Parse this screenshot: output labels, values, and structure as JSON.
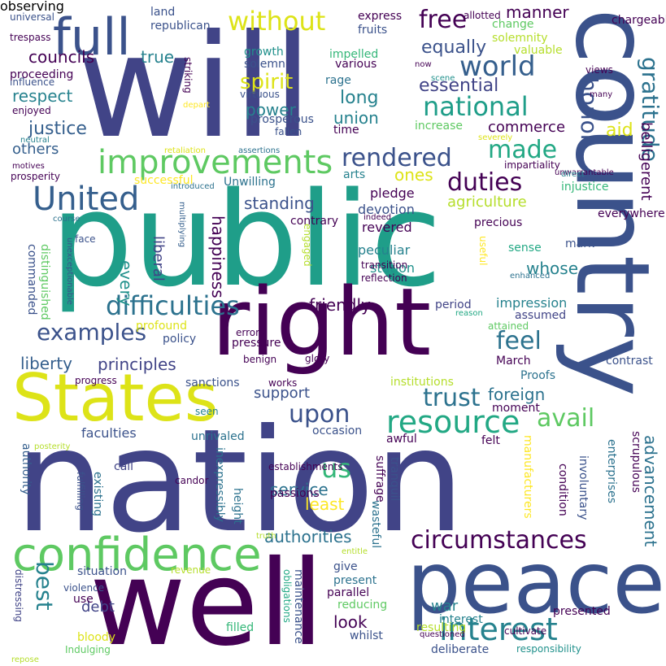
{
  "words": [
    {
      "text": "public",
      "color": "#1f9e89"
    },
    {
      "text": "nation",
      "color": "#414487"
    },
    {
      "text": "will",
      "color": "#414487"
    },
    {
      "text": "well",
      "color": "#440154"
    },
    {
      "text": "country",
      "color": "#3b528b"
    },
    {
      "text": "right",
      "color": "#440154"
    },
    {
      "text": "peace",
      "color": "#3b528b"
    },
    {
      "text": "States",
      "color": "#dde318"
    },
    {
      "text": "full",
      "color": "#3b528b"
    },
    {
      "text": "confidence",
      "color": "#5ec962"
    },
    {
      "text": "improvements",
      "color": "#5ec962"
    },
    {
      "text": "United",
      "color": "#355f8d"
    },
    {
      "text": "interest",
      "color": "#26828e"
    },
    {
      "text": "circumstances",
      "color": "#440154"
    },
    {
      "text": "resource",
      "color": "#22a884"
    },
    {
      "text": "difficulties",
      "color": "#2c728e"
    },
    {
      "text": "national",
      "color": "#1f9e89"
    },
    {
      "text": "world",
      "color": "#355f8d"
    },
    {
      "text": "rendered",
      "color": "#3b528b"
    },
    {
      "text": "duties",
      "color": "#440154"
    },
    {
      "text": "made",
      "color": "#22a884"
    },
    {
      "text": "without",
      "color": "#dde318"
    },
    {
      "text": "gratitude",
      "color": "#2c728e"
    },
    {
      "text": "honor",
      "color": "#3b528b"
    },
    {
      "text": "examples",
      "color": "#3b528b"
    },
    {
      "text": "trust",
      "color": "#2c728e"
    },
    {
      "text": "upon",
      "color": "#3b528b"
    },
    {
      "text": "best",
      "color": "#26828e"
    },
    {
      "text": "us",
      "color": "#35b779"
    },
    {
      "text": "free",
      "color": "#440154"
    },
    {
      "text": "feel",
      "color": "#2c728e"
    },
    {
      "text": "avail",
      "color": "#5ec962"
    },
    {
      "text": "spirit",
      "color": "#dde318"
    },
    {
      "text": "councils",
      "color": "#440154"
    },
    {
      "text": "justice",
      "color": "#355f8d"
    },
    {
      "text": "advancement",
      "color": "#2c728e"
    },
    {
      "text": "authorities",
      "color": "#2c728e"
    },
    {
      "text": "debt",
      "color": "#414487"
    },
    {
      "text": "principles",
      "color": "#414487"
    },
    {
      "text": "liberty",
      "color": "#355f8d"
    },
    {
      "text": "foreign",
      "color": "#2c728e"
    },
    {
      "text": "standing",
      "color": "#3b528b"
    },
    {
      "text": "happiness",
      "color": "#440154"
    },
    {
      "text": "liberal",
      "color": "#414487"
    },
    {
      "text": "every",
      "color": "#21918c"
    },
    {
      "text": "power",
      "color": "#26828e"
    },
    {
      "text": "union",
      "color": "#26828e"
    },
    {
      "text": "long",
      "color": "#26828e"
    },
    {
      "text": "essential",
      "color": "#414487"
    },
    {
      "text": "equally",
      "color": "#3b528b"
    },
    {
      "text": "manner",
      "color": "#440154"
    },
    {
      "text": "agriculture",
      "color": "#b5de2b"
    },
    {
      "text": "commerce",
      "color": "#440154"
    },
    {
      "text": "belligerent",
      "color": "#440154"
    },
    {
      "text": "aid",
      "color": "#dde318"
    },
    {
      "text": "whose",
      "color": "#26828e"
    },
    {
      "text": "respect",
      "color": "#26828e"
    },
    {
      "text": "others",
      "color": "#355f8d"
    },
    {
      "text": "friendly",
      "color": "#440154"
    },
    {
      "text": "war",
      "color": "#26828e"
    },
    {
      "text": "look",
      "color": "#440154"
    },
    {
      "text": "support",
      "color": "#3b528b"
    },
    {
      "text": "service",
      "color": "#2c728e"
    },
    {
      "text": "least",
      "color": "#fde725"
    },
    {
      "text": "true",
      "color": "#26828e"
    },
    {
      "text": "ones",
      "color": "#dde318"
    },
    {
      "text": "pledge",
      "color": "#440154"
    },
    {
      "text": "devotion",
      "color": "#3b528b"
    },
    {
      "text": "revered",
      "color": "#440154"
    },
    {
      "text": "peculiar",
      "color": "#26828e"
    },
    {
      "text": "station",
      "color": "#21918c"
    },
    {
      "text": "impression",
      "color": "#26828e"
    },
    {
      "text": "assumed",
      "color": "#414487"
    },
    {
      "text": "period",
      "color": "#414487"
    },
    {
      "text": "mark",
      "color": "#3b528b"
    },
    {
      "text": "sense",
      "color": "#22a884"
    },
    {
      "text": "interest",
      "color": "#26828e"
    },
    {
      "text": "presented",
      "color": "#440154"
    },
    {
      "text": "resulting",
      "color": "#b5de2b"
    },
    {
      "text": "deliberate",
      "color": "#3b528b"
    },
    {
      "text": "responsibility",
      "color": "#21918c"
    },
    {
      "text": "whilst",
      "color": "#3b528b"
    },
    {
      "text": "questioned",
      "color": "#440154"
    },
    {
      "text": "cultivate",
      "color": "#440154"
    },
    {
      "text": "use",
      "color": "#440154"
    },
    {
      "text": "filled",
      "color": "#35b779"
    },
    {
      "text": "bloody",
      "color": "#dde318"
    },
    {
      "text": "Indulging",
      "color": "#5ec962"
    },
    {
      "text": "violence",
      "color": "#3b528b"
    },
    {
      "text": "situation",
      "color": "#3b528b"
    },
    {
      "text": "revenue",
      "color": "#b5de2b"
    },
    {
      "text": "give",
      "color": "#3b528b"
    },
    {
      "text": "present",
      "color": "#2c728e"
    },
    {
      "text": "reducing",
      "color": "#5ec962"
    },
    {
      "text": "parallel",
      "color": "#440154"
    },
    {
      "text": "entitle",
      "color": "#b5de2b"
    },
    {
      "text": "maintenance",
      "color": "#3b528b"
    },
    {
      "text": "obligations",
      "color": "#22a884"
    },
    {
      "text": "distressing",
      "color": "#414487"
    },
    {
      "text": "fulfilling",
      "color": "#3b528b"
    },
    {
      "text": "existing",
      "color": "#2c728e"
    },
    {
      "text": "authority",
      "color": "#355f8d"
    },
    {
      "text": "height",
      "color": "#2c728e"
    },
    {
      "text": "inexpressibly",
      "color": "#2c728e"
    },
    {
      "text": "passions",
      "color": "#440154"
    },
    {
      "text": "candor",
      "color": "#440154"
    },
    {
      "text": "call",
      "color": "#414487"
    },
    {
      "text": "unrivaled",
      "color": "#2c728e"
    },
    {
      "text": "faculties",
      "color": "#3b528b"
    },
    {
      "text": "seen",
      "color": "#26828e"
    },
    {
      "text": "occasion",
      "color": "#3b528b"
    },
    {
      "text": "awful",
      "color": "#440154"
    },
    {
      "text": "suffrage",
      "color": "#440154"
    },
    {
      "text": "tranquil",
      "color": "#3b528b"
    },
    {
      "text": "wasteful",
      "color": "#2c728e"
    },
    {
      "text": "manufacturers",
      "color": "#fde725"
    },
    {
      "text": "felt",
      "color": "#440154"
    },
    {
      "text": "condition",
      "color": "#440154"
    },
    {
      "text": "involuntary",
      "color": "#3b528b"
    },
    {
      "text": "enterprises",
      "color": "#2c728e"
    },
    {
      "text": "scrupulous",
      "color": "#440154"
    },
    {
      "text": "establishments",
      "color": "#440154"
    },
    {
      "text": "posterity",
      "color": "#b5de2b"
    },
    {
      "text": "truth",
      "color": "#b5de2b"
    },
    {
      "text": "moment",
      "color": "#440154"
    },
    {
      "text": "Proofs",
      "color": "#2c728e"
    },
    {
      "text": "institutions",
      "color": "#b5de2b"
    },
    {
      "text": "contrast",
      "color": "#3b528b"
    },
    {
      "text": "March",
      "color": "#440154"
    },
    {
      "text": "sanctions",
      "color": "#3b528b"
    },
    {
      "text": "works",
      "color": "#440154"
    },
    {
      "text": "progress",
      "color": "#440154"
    },
    {
      "text": "benign",
      "color": "#440154"
    },
    {
      "text": "glory",
      "color": "#440154"
    },
    {
      "text": "pressure",
      "color": "#440154"
    },
    {
      "text": "errors",
      "color": "#440154"
    },
    {
      "text": "policy",
      "color": "#3b528b"
    },
    {
      "text": "profound",
      "color": "#dde318"
    },
    {
      "text": "attained",
      "color": "#5ec962"
    },
    {
      "text": "reason",
      "color": "#22a884"
    },
    {
      "text": "reflection",
      "color": "#440154"
    },
    {
      "text": "transition",
      "color": "#440154"
    },
    {
      "text": "engaged",
      "color": "#b5de2b"
    },
    {
      "text": "commanded",
      "color": "#3b528b"
    },
    {
      "text": "distinguished",
      "color": "#5ec962"
    },
    {
      "text": "unexceptionable",
      "color": "#3b528b"
    },
    {
      "text": "multiplying",
      "color": "#355f8d"
    },
    {
      "text": "face",
      "color": "#3b528b"
    },
    {
      "text": "course",
      "color": "#2c728e"
    },
    {
      "text": "motives",
      "color": "#440154"
    },
    {
      "text": "prosperity",
      "color": "#440154"
    },
    {
      "text": "successful",
      "color": "#fde725"
    },
    {
      "text": "introduced",
      "color": "#2c728e"
    },
    {
      "text": "Unwilling",
      "color": "#2c728e"
    },
    {
      "text": "retaliation",
      "color": "#dde318"
    },
    {
      "text": "assertions",
      "color": "#2c728e"
    },
    {
      "text": "neutral",
      "color": "#26828e"
    },
    {
      "text": "enjoyed",
      "color": "#440154"
    },
    {
      "text": "influence",
      "color": "#3b528b"
    },
    {
      "text": "proceeding",
      "color": "#440154"
    },
    {
      "text": "trespass",
      "color": "#440154"
    },
    {
      "text": "universal",
      "color": "#3b528b"
    },
    {
      "text": "land",
      "color": "#3b528b"
    },
    {
      "text": "republican",
      "color": "#3b528b"
    },
    {
      "text": "express",
      "color": "#440154"
    },
    {
      "text": "fruits",
      "color": "#3b528b"
    },
    {
      "text": "allotted",
      "color": "#440154"
    },
    {
      "text": "chargeable",
      "color": "#440154"
    },
    {
      "text": "change",
      "color": "#5ec962"
    },
    {
      "text": "solemnity",
      "color": "#b5de2b"
    },
    {
      "text": "valuable",
      "color": "#b5de2b"
    },
    {
      "text": "now",
      "color": "#440154"
    },
    {
      "text": "scene",
      "color": "#21918c"
    },
    {
      "text": "views",
      "color": "#440154"
    },
    {
      "text": "many",
      "color": "#440154"
    },
    {
      "text": "impelled",
      "color": "#35b779"
    },
    {
      "text": "various",
      "color": "#440154"
    },
    {
      "text": "growth",
      "color": "#21918c"
    },
    {
      "text": "solemn",
      "color": "#3b528b"
    },
    {
      "text": "striking",
      "color": "#440154"
    },
    {
      "text": "depart",
      "color": "#fde725"
    },
    {
      "text": "rage",
      "color": "#2c728e"
    },
    {
      "text": "virtuous",
      "color": "#3b528b"
    },
    {
      "text": "prosperous",
      "color": "#3b528b"
    },
    {
      "text": "fallen",
      "color": "#3b528b"
    },
    {
      "text": "time",
      "color": "#440154"
    },
    {
      "text": "increase",
      "color": "#5ec962"
    },
    {
      "text": "severely",
      "color": "#dde318"
    },
    {
      "text": "impartiality",
      "color": "#440154"
    },
    {
      "text": "unwarrantable",
      "color": "#440154"
    },
    {
      "text": "direct",
      "color": "#26828e"
    },
    {
      "text": "injustice",
      "color": "#35b779"
    },
    {
      "text": "everywhere",
      "color": "#440154"
    },
    {
      "text": "arts",
      "color": "#26828e"
    },
    {
      "text": "indeed",
      "color": "#440154"
    },
    {
      "text": "contrary",
      "color": "#440154"
    },
    {
      "text": "precious",
      "color": "#440154"
    },
    {
      "text": "useful",
      "color": "#fde725"
    },
    {
      "text": "enhanced",
      "color": "#2c728e"
    },
    {
      "text": "repose",
      "color": "#b5de2b"
    },
    {
      "text": "observing",
      "color": "#b5de2b"
    }
  ]
}
